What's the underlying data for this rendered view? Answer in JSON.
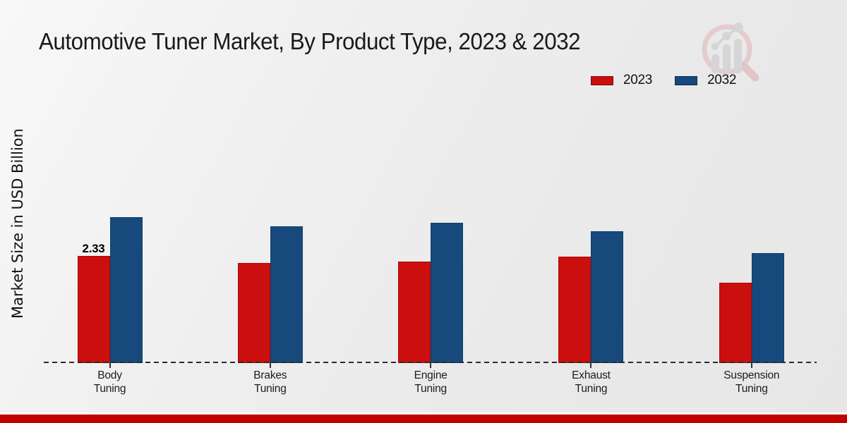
{
  "chart_data": {
    "type": "bar",
    "title": "Automotive Tuner Market, By Product Type, 2023 & 2032",
    "ylabel": "Market Size in USD Billion",
    "xlabel": "",
    "categories": [
      "Body Tuning",
      "Brakes Tuning",
      "Engine Tuning",
      "Exhaust Tuning",
      "Suspension Tuning"
    ],
    "series": [
      {
        "name": "2023",
        "color": "#cb0e0e",
        "values": [
          2.33,
          2.18,
          2.21,
          2.31,
          1.75
        ]
      },
      {
        "name": "2032",
        "color": "#17497d",
        "values": [
          3.18,
          2.98,
          3.05,
          2.87,
          2.4
        ]
      }
    ],
    "annotations": [
      {
        "category_index": 0,
        "series_index": 0,
        "text": "2.33"
      }
    ],
    "ylim": [
      0,
      3.5
    ],
    "grid": false,
    "baseline_style": "dashed",
    "legend_position": "top-right"
  },
  "watermark": {
    "icon": "market-research-future-logo",
    "circle_color": "#e3b4b8",
    "bars_color": "#c6c6c9"
  },
  "footer": {
    "bar_color": "#c00000"
  }
}
